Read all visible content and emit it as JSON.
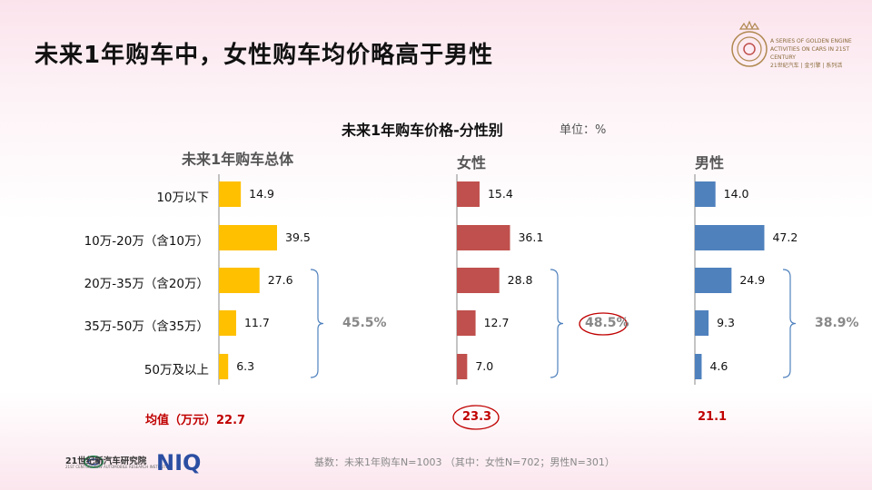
{
  "title": "未来1年购车中，女性购车均价略高于男性",
  "logo": {
    "text_line1": "A SERIES OF GOLDEN ENGINE",
    "text_line2": "ACTIVITIES ON CARS IN 21ST CENTURY",
    "text_line3": "21世纪汽车 | 金引擎 | 系列活"
  },
  "institute": {
    "name": "21世纪新汽车研究院",
    "sub": "21ST CENTURY NEW AUTOMOBILE RESEARCH INSTITUTE"
  },
  "niq_logo": "NIQ",
  "footnote": "基数：未来1年购车N=1003 （其中：女性N=702；男性N=301）",
  "chart_data": {
    "type": "bar",
    "orientation": "horizontal",
    "title": "未来1年购车价格-分性别",
    "unit": "单位：%",
    "categories": [
      "10万以下",
      "10万-20万（含10万）",
      "20万-35万（含20万）",
      "35万-50万（含35万）",
      "50万及以上"
    ],
    "series": [
      {
        "name": "未来1年购车总体",
        "color": "#ffc000",
        "values": [
          14.9,
          39.5,
          27.6,
          11.7,
          6.3
        ],
        "bracket_label": "45.5%",
        "average": "均值（万元）22.7"
      },
      {
        "name": "女性",
        "color": "#c0504d",
        "values": [
          15.4,
          36.1,
          28.8,
          12.7,
          7.0
        ],
        "bracket_label": "48.5%",
        "average": "23.3"
      },
      {
        "name": "男性",
        "color": "#4f81bd",
        "values": [
          14.0,
          47.2,
          24.9,
          9.3,
          4.6
        ],
        "bracket_label": "38.9%",
        "average": "21.1"
      }
    ],
    "bracket_covers_categories": [
      2,
      3,
      4
    ],
    "highlighted_series": 1
  }
}
